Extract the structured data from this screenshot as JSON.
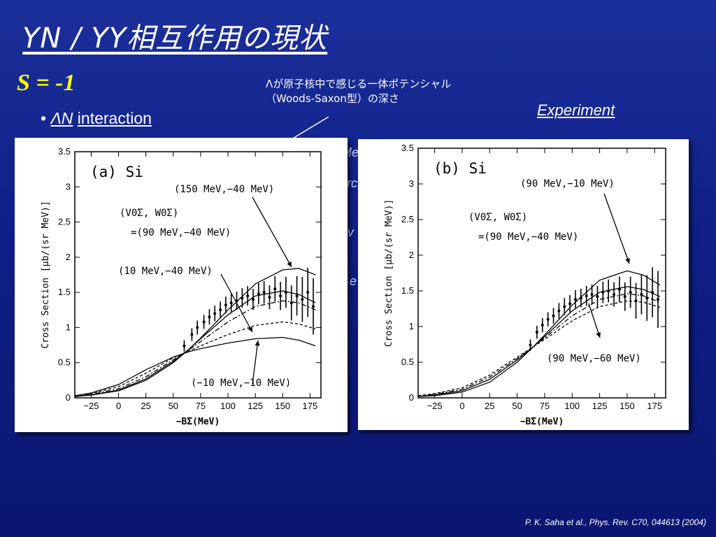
{
  "slide": {
    "title": "YN / YY相互作用の現状",
    "s_label": "S = -1",
    "bullet_mark": "•",
    "bullet_symbol": "ΛN",
    "bullet_text": "interaction",
    "note_line1": "Λが原子核中で感じる一体ポテンシャル",
    "note_line2": "（Woods-Saxon型）の深さ",
    "experiment": "Experiment",
    "partial_text": [
      "Me",
      "rc",
      "ℓ v",
      "e"
    ],
    "citation": "P. K. Saha et al., Phys. Rev. C70, 044613 (2004)"
  },
  "chart_data": [
    {
      "type": "line",
      "panel_label": "(a) Si",
      "xlabel": "−BΣ(MeV)",
      "ylabel": "Cross Section [μb/(sr MeV)]",
      "xlim": [
        -40,
        185
      ],
      "ylim": [
        0,
        3.5
      ],
      "xticks": [
        -25,
        0,
        25,
        50,
        75,
        100,
        125,
        150,
        175
      ],
      "yticks": [
        0,
        0.5,
        1,
        1.5,
        2,
        2.5,
        3,
        3.5
      ],
      "ytick_labels": [
        "0",
        "0.5",
        "1",
        "1.5",
        "2",
        "2.5",
        "3",
        "3.5"
      ],
      "annotations": [
        "(150 MeV,−40 MeV)",
        "(V0Σ, W0Σ)",
        "=(90 MeV,−40 MeV)",
        "(10 MeV,−40 MeV)",
        "(−10 MeV,−10 MeV)"
      ],
      "series": [
        {
          "name": "(150 MeV,−40 MeV)",
          "style": "solid",
          "x": [
            -40,
            -25,
            0,
            25,
            50,
            65,
            75,
            100,
            125,
            150,
            165,
            180
          ],
          "y": [
            0.02,
            0.04,
            0.1,
            0.25,
            0.5,
            0.7,
            0.85,
            1.25,
            1.62,
            1.82,
            1.84,
            1.75
          ]
        },
        {
          "name": "(90 MeV,−40 MeV)",
          "style": "solid",
          "x": [
            -40,
            -25,
            0,
            25,
            50,
            65,
            75,
            100,
            125,
            150,
            165,
            180
          ],
          "y": [
            0.02,
            0.04,
            0.11,
            0.27,
            0.52,
            0.7,
            0.84,
            1.18,
            1.45,
            1.52,
            1.47,
            1.35
          ]
        },
        {
          "name": "",
          "style": "dashdot",
          "x": [
            -40,
            -25,
            0,
            25,
            50,
            65,
            75,
            100,
            125,
            150,
            165,
            180
          ],
          "y": [
            0.02,
            0.05,
            0.13,
            0.3,
            0.54,
            0.69,
            0.8,
            1.08,
            1.3,
            1.38,
            1.35,
            1.25
          ]
        },
        {
          "name": "(10 MeV,−40 MeV)",
          "style": "dashed",
          "x": [
            -40,
            -25,
            0,
            25,
            50,
            65,
            75,
            100,
            125,
            150,
            165,
            180
          ],
          "y": [
            0.03,
            0.06,
            0.16,
            0.35,
            0.57,
            0.67,
            0.74,
            0.9,
            1.03,
            1.08,
            1.05,
            0.98
          ]
        },
        {
          "name": "(−10 MeV,−10 MeV)",
          "style": "solid",
          "x": [
            -40,
            -25,
            0,
            25,
            50,
            65,
            75,
            100,
            125,
            150,
            165,
            180
          ],
          "y": [
            0.03,
            0.07,
            0.19,
            0.4,
            0.58,
            0.66,
            0.7,
            0.78,
            0.84,
            0.86,
            0.82,
            0.74
          ]
        }
      ],
      "experiment_points": {
        "x": [
          60,
          67,
          72,
          78,
          83,
          88,
          93,
          98,
          103,
          108,
          113,
          118,
          123,
          128,
          133,
          138,
          143,
          148,
          153,
          158,
          163,
          168,
          173,
          178
        ],
        "y": [
          0.74,
          0.9,
          1.0,
          1.08,
          1.15,
          1.2,
          1.25,
          1.32,
          1.35,
          1.38,
          1.42,
          1.45,
          1.4,
          1.48,
          1.5,
          1.43,
          1.55,
          1.45,
          1.5,
          1.35,
          1.45,
          1.4,
          1.5,
          1.3
        ],
        "err": [
          0.08,
          0.09,
          0.1,
          0.1,
          0.11,
          0.11,
          0.12,
          0.12,
          0.13,
          0.13,
          0.14,
          0.14,
          0.15,
          0.15,
          0.16,
          0.17,
          0.18,
          0.2,
          0.22,
          0.25,
          0.28,
          0.32,
          0.35,
          0.4
        ]
      }
    },
    {
      "type": "line",
      "panel_label": "(b) Si",
      "xlabel": "−BΣ(MeV)",
      "ylabel": "Cross Section [μb/(sr MeV)]",
      "xlim": [
        -40,
        185
      ],
      "ylim": [
        0,
        3.5
      ],
      "xticks": [
        -25,
        0,
        25,
        50,
        75,
        100,
        125,
        150,
        175
      ],
      "yticks": [
        0,
        0.5,
        1,
        1.5,
        2,
        2.5,
        3,
        3.5
      ],
      "ytick_labels": [
        "0",
        "0.5",
        "1",
        "1.5",
        "2",
        "2.5",
        "3",
        "3.5"
      ],
      "annotations": [
        "(90 MeV,−10 MeV)",
        "(V0Σ, W0Σ)",
        "=(90 MeV,−40 MeV)",
        "(90 MeV,−60 MeV)"
      ],
      "series": [
        {
          "name": "(90 MeV,−10 MeV)",
          "style": "solid",
          "x": [
            -40,
            -25,
            0,
            25,
            50,
            65,
            75,
            100,
            125,
            150,
            165,
            180
          ],
          "y": [
            0.02,
            0.03,
            0.08,
            0.22,
            0.5,
            0.72,
            0.88,
            1.3,
            1.65,
            1.78,
            1.72,
            1.58
          ]
        },
        {
          "name": "(90 MeV,−40 MeV)",
          "style": "solid",
          "x": [
            -40,
            -25,
            0,
            25,
            50,
            65,
            75,
            100,
            125,
            150,
            165,
            180
          ],
          "y": [
            0.02,
            0.04,
            0.1,
            0.26,
            0.53,
            0.72,
            0.86,
            1.22,
            1.48,
            1.56,
            1.52,
            1.42
          ]
        },
        {
          "name": "",
          "style": "dashdot",
          "x": [
            -40,
            -25,
            0,
            25,
            50,
            65,
            75,
            100,
            125,
            150,
            165,
            180
          ],
          "y": [
            0.02,
            0.05,
            0.12,
            0.29,
            0.55,
            0.72,
            0.84,
            1.15,
            1.38,
            1.46,
            1.43,
            1.34
          ]
        },
        {
          "name": "(90 MeV,−60 MeV)",
          "style": "dashed",
          "x": [
            -40,
            -25,
            0,
            25,
            50,
            65,
            75,
            100,
            125,
            150,
            165,
            180
          ],
          "y": [
            0.03,
            0.06,
            0.14,
            0.32,
            0.57,
            0.72,
            0.82,
            1.08,
            1.28,
            1.36,
            1.34,
            1.27
          ]
        }
      ],
      "experiment_points": {
        "x": [
          62,
          68,
          73,
          78,
          83,
          88,
          93,
          98,
          103,
          108,
          113,
          118,
          123,
          128,
          133,
          138,
          143,
          148,
          153,
          158,
          163,
          168,
          173,
          178
        ],
        "y": [
          0.74,
          0.92,
          1.02,
          1.1,
          1.15,
          1.22,
          1.28,
          1.32,
          1.38,
          1.4,
          1.43,
          1.45,
          1.42,
          1.48,
          1.5,
          1.45,
          1.52,
          1.42,
          1.48,
          1.36,
          1.45,
          1.4,
          1.48,
          1.38
        ],
        "err": [
          0.08,
          0.09,
          0.1,
          0.1,
          0.11,
          0.11,
          0.12,
          0.12,
          0.13,
          0.13,
          0.14,
          0.14,
          0.15,
          0.15,
          0.16,
          0.17,
          0.18,
          0.2,
          0.22,
          0.25,
          0.28,
          0.32,
          0.35,
          0.4
        ]
      }
    }
  ]
}
